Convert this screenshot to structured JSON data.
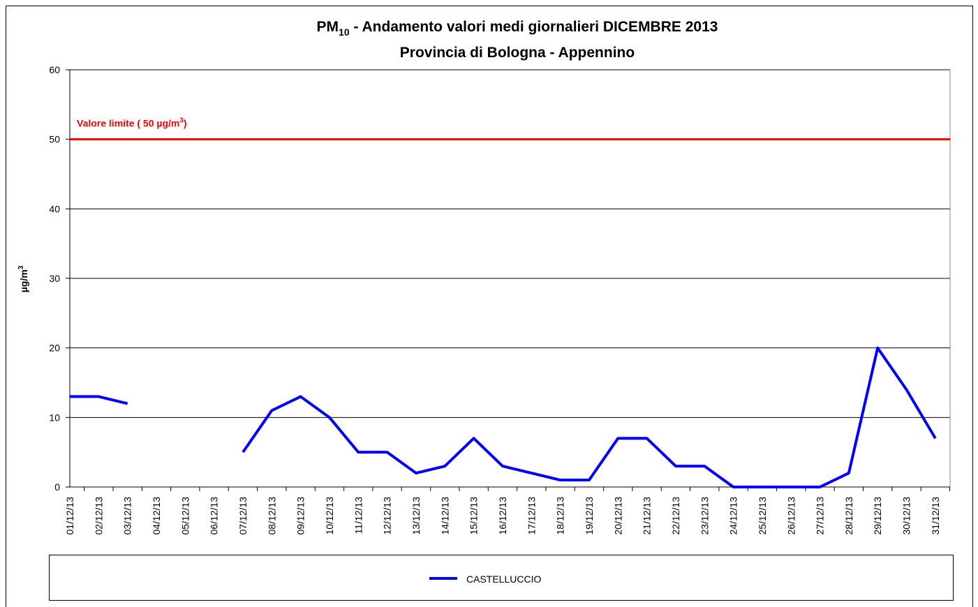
{
  "chart_data": {
    "type": "line",
    "title_parts": [
      "PM",
      "10",
      " - Andamento valori medi giornalieri DICEMBRE 2013"
    ],
    "subtitle": "Provincia di Bologna - Appennino",
    "y_label_parts": [
      "µg/m",
      "3"
    ],
    "categories": [
      "01/12/13",
      "02/12/13",
      "03/12/13",
      "04/12/13",
      "05/12/13",
      "06/12/13",
      "07/12/13",
      "08/12/13",
      "09/12/13",
      "10/12/13",
      "11/12/13",
      "12/12/13",
      "13/12/13",
      "14/12/13",
      "15/12/13",
      "16/12/13",
      "17/12/13",
      "18/12/13",
      "19/12/13",
      "20/12/13",
      "21/12/13",
      "22/12/13",
      "23/12/13",
      "24/12/13",
      "25/12/13",
      "26/12/13",
      "27/12/13",
      "28/12/13",
      "29/12/13",
      "30/12/13",
      "31/12/13"
    ],
    "series": [
      {
        "name": "CASTELLUCCIO",
        "color": "#0000ff",
        "values": [
          13,
          13,
          12,
          null,
          null,
          null,
          5,
          11,
          13,
          10,
          5,
          5,
          2,
          3,
          7,
          3,
          2,
          1,
          1,
          7,
          7,
          3,
          3,
          0,
          0,
          0,
          0,
          2,
          20,
          14,
          7
        ]
      }
    ],
    "limit": {
      "value": 50,
      "color": "#ff0000",
      "label_parts": [
        "Valore limite  ( 50 µg/m",
        "3",
        ")"
      ]
    },
    "ylim": [
      0,
      60
    ],
    "yticks": [
      0,
      10,
      20,
      30,
      40,
      50,
      60
    ],
    "grid": true
  }
}
